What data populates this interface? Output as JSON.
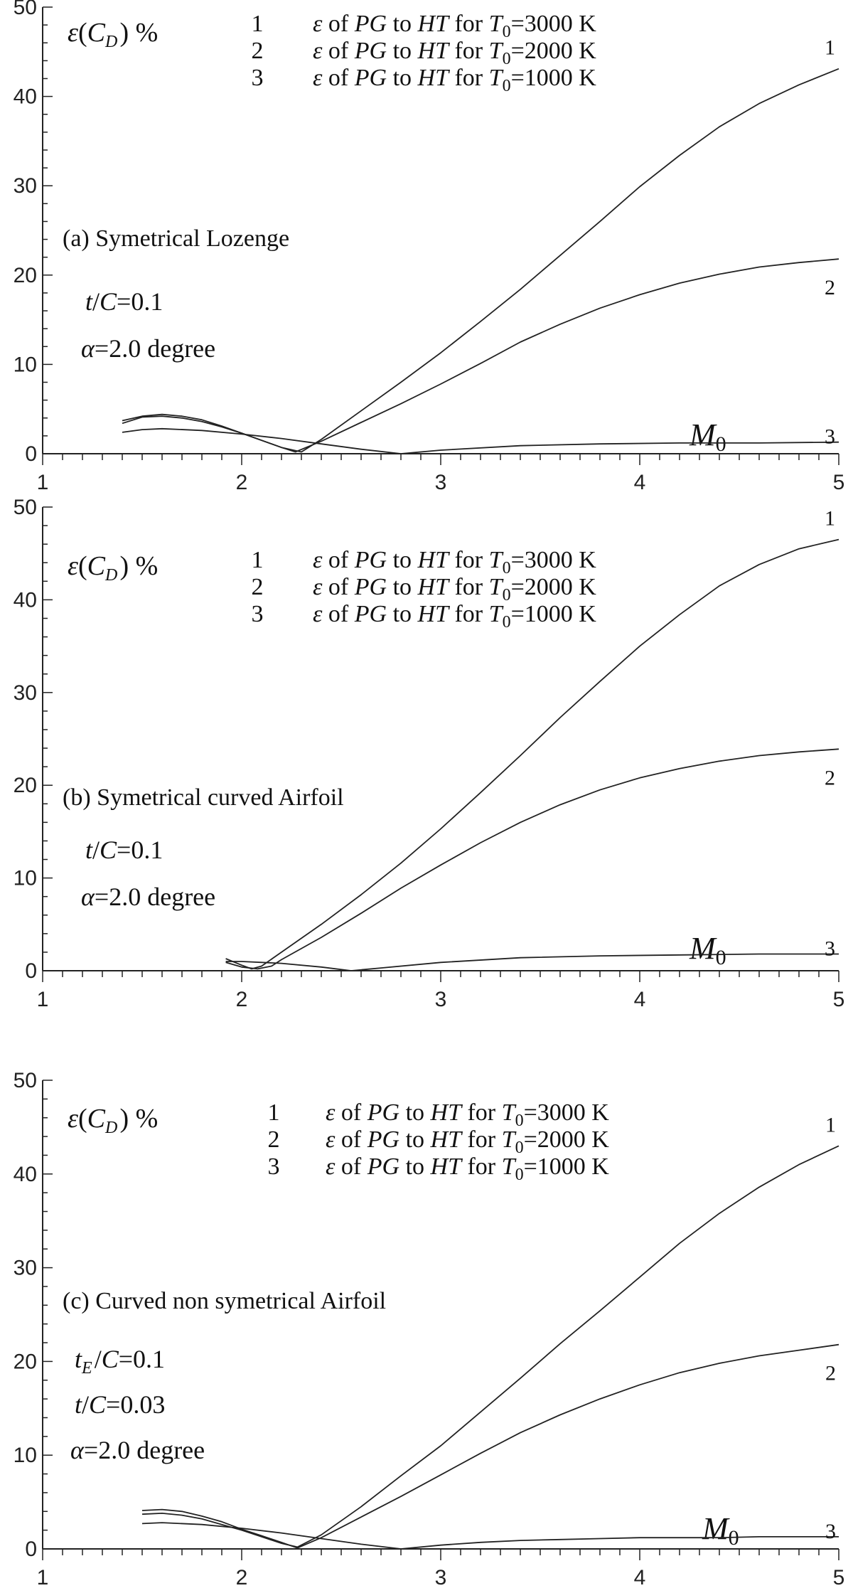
{
  "chart_data": [
    {
      "type": "line",
      "title": "Symetrical Lozenge",
      "panel_label": "(a)",
      "params": [
        {
          "lhs": "t/C",
          "rhs": "=0.1"
        },
        {
          "lhs": "α",
          "rhs": "=2.0 degree"
        }
      ],
      "ylabel": "ε(C_D)  %",
      "xlabel": "M_0",
      "xlim": [
        1,
        5
      ],
      "ylim": [
        0,
        50
      ],
      "xticks": [
        1,
        2,
        3,
        4,
        5
      ],
      "yticks": [
        0,
        10,
        20,
        30,
        40,
        50
      ],
      "grid": false,
      "legend_position": "top",
      "legend": [
        {
          "number": "1",
          "text": "ε of PG to HT for T0=3000 K"
        },
        {
          "number": "2",
          "text": "ε of PG to HT for T0=2000 K"
        },
        {
          "number": "3",
          "text": "ε of PG to HT for T0=1000 K"
        }
      ],
      "series": [
        {
          "name": "1",
          "x": [
            1.4,
            1.5,
            1.6,
            1.7,
            1.8,
            1.9,
            2.0,
            2.1,
            2.2,
            2.3,
            2.4,
            2.6,
            2.8,
            3.0,
            3.2,
            3.4,
            3.6,
            3.8,
            4.0,
            4.2,
            4.4,
            4.6,
            4.8,
            5.0
          ],
          "y": [
            3.4,
            4.1,
            4.2,
            4.0,
            3.6,
            3.0,
            2.3,
            1.5,
            0.7,
            0.2,
            1.6,
            4.8,
            8.0,
            11.3,
            14.8,
            18.4,
            22.2,
            26.0,
            29.9,
            33.4,
            36.6,
            39.2,
            41.3,
            43.1
          ]
        },
        {
          "name": "2",
          "x": [
            1.4,
            1.5,
            1.6,
            1.7,
            1.8,
            1.9,
            2.0,
            2.1,
            2.2,
            2.27,
            2.4,
            2.6,
            2.8,
            3.0,
            3.2,
            3.4,
            3.6,
            3.8,
            4.0,
            4.2,
            4.4,
            4.6,
            4.8,
            5.0
          ],
          "y": [
            3.7,
            4.2,
            4.4,
            4.2,
            3.8,
            3.1,
            2.3,
            1.5,
            0.7,
            0.2,
            1.4,
            3.5,
            5.6,
            7.8,
            10.1,
            12.5,
            14.5,
            16.3,
            17.8,
            19.1,
            20.1,
            20.9,
            21.4,
            21.8
          ]
        },
        {
          "name": "3",
          "x": [
            1.4,
            1.5,
            1.6,
            1.8,
            2.0,
            2.2,
            2.4,
            2.6,
            2.8,
            3.0,
            3.4,
            3.8,
            4.2,
            4.6,
            5.0
          ],
          "y": [
            2.4,
            2.7,
            2.8,
            2.6,
            2.2,
            1.7,
            1.1,
            0.5,
            0.0,
            0.4,
            0.9,
            1.1,
            1.2,
            1.2,
            1.3
          ]
        }
      ]
    },
    {
      "type": "line",
      "title": "Symetrical curved Airfoil",
      "panel_label": "(b)",
      "params": [
        {
          "lhs": "t/C",
          "rhs": "=0.1"
        },
        {
          "lhs": "α",
          "rhs": "=2.0 degree"
        }
      ],
      "ylabel": "ε(C_D)  %",
      "xlabel": "M_0",
      "xlim": [
        1,
        5
      ],
      "ylim": [
        0,
        50
      ],
      "xticks": [
        1,
        2,
        3,
        4,
        5
      ],
      "yticks": [
        0,
        10,
        20,
        30,
        40,
        50
      ],
      "grid": false,
      "legend_position": "top",
      "legend": [
        {
          "number": "1",
          "text": "ε of PG to HT for T0=3000 K"
        },
        {
          "number": "2",
          "text": "ε of PG to HT for T0=2000 K"
        },
        {
          "number": "3",
          "text": "ε of PG to HT for T0=1000 K"
        }
      ],
      "series": [
        {
          "name": "1",
          "x": [
            1.92,
            2.0,
            2.05,
            2.1,
            2.2,
            2.4,
            2.6,
            2.8,
            3.0,
            3.2,
            3.4,
            3.6,
            3.8,
            4.0,
            4.2,
            4.4,
            4.6,
            4.8,
            5.0
          ],
          "y": [
            1.3,
            0.6,
            0.2,
            0.5,
            2.0,
            5.0,
            8.2,
            11.6,
            15.3,
            19.2,
            23.2,
            27.3,
            31.2,
            35.0,
            38.4,
            41.5,
            43.8,
            45.5,
            46.5
          ]
        },
        {
          "name": "2",
          "x": [
            1.92,
            2.0,
            2.08,
            2.15,
            2.2,
            2.4,
            2.6,
            2.8,
            3.0,
            3.2,
            3.4,
            3.6,
            3.8,
            4.0,
            4.2,
            4.4,
            4.6,
            4.8,
            5.0
          ],
          "y": [
            0.9,
            0.4,
            0.2,
            0.5,
            1.2,
            3.6,
            6.2,
            8.9,
            11.4,
            13.8,
            16.0,
            17.9,
            19.5,
            20.8,
            21.8,
            22.6,
            23.2,
            23.6,
            23.9
          ]
        },
        {
          "name": "3",
          "x": [
            1.92,
            2.0,
            2.2,
            2.4,
            2.55,
            2.7,
            3.0,
            3.4,
            3.8,
            4.2,
            4.6,
            5.0
          ],
          "y": [
            1.0,
            1.0,
            0.8,
            0.4,
            0.0,
            0.3,
            0.9,
            1.4,
            1.6,
            1.7,
            1.8,
            1.8
          ]
        }
      ]
    },
    {
      "type": "line",
      "title": "Curved non symetrical Airfoil",
      "panel_label": "(c)",
      "params": [
        {
          "lhs": "t_E/C",
          "rhs": "=0.1"
        },
        {
          "lhs": "t/C",
          "rhs": "=0.03"
        },
        {
          "lhs": "α",
          "rhs": "=2.0 degree"
        }
      ],
      "ylabel": "ε(C_D)  %",
      "xlabel": "M_0",
      "xlim": [
        1,
        5
      ],
      "ylim": [
        0,
        50
      ],
      "xticks": [
        1,
        2,
        3,
        4,
        5
      ],
      "yticks": [
        0,
        10,
        20,
        30,
        40,
        50
      ],
      "grid": false,
      "legend_position": "top",
      "legend": [
        {
          "number": "1",
          "text": "ε of PG to HT for T0=3000 K"
        },
        {
          "number": "2",
          "text": "ε of PG to HT for T0=2000 K"
        },
        {
          "number": "3",
          "text": "ε of PG to HT for T0=1000 K"
        }
      ],
      "series": [
        {
          "name": "1",
          "x": [
            1.5,
            1.6,
            1.7,
            1.8,
            1.9,
            2.0,
            2.1,
            2.2,
            2.28,
            2.4,
            2.6,
            2.8,
            3.0,
            3.2,
            3.4,
            3.6,
            3.8,
            4.0,
            4.2,
            4.4,
            4.6,
            4.8,
            5.0
          ],
          "y": [
            3.7,
            3.8,
            3.6,
            3.2,
            2.6,
            2.0,
            1.3,
            0.6,
            0.2,
            1.5,
            4.5,
            7.8,
            11.0,
            14.6,
            18.2,
            21.9,
            25.4,
            29.0,
            32.6,
            35.8,
            38.6,
            41.0,
            43.0
          ]
        },
        {
          "name": "2",
          "x": [
            1.5,
            1.6,
            1.7,
            1.8,
            1.9,
            2.0,
            2.1,
            2.2,
            2.28,
            2.4,
            2.6,
            2.8,
            3.0,
            3.2,
            3.4,
            3.6,
            3.8,
            4.0,
            4.2,
            4.4,
            4.6,
            4.8,
            5.0
          ],
          "y": [
            4.1,
            4.2,
            4.0,
            3.5,
            2.9,
            2.1,
            1.4,
            0.7,
            0.1,
            1.2,
            3.4,
            5.6,
            7.9,
            10.2,
            12.4,
            14.3,
            16.0,
            17.5,
            18.8,
            19.8,
            20.6,
            21.2,
            21.8
          ]
        },
        {
          "name": "3",
          "x": [
            1.5,
            1.6,
            1.8,
            2.0,
            2.2,
            2.4,
            2.6,
            2.8,
            3.0,
            3.2,
            3.4,
            3.6,
            3.8,
            4.0,
            4.2,
            4.4,
            4.6,
            4.8,
            5.0
          ],
          "y": [
            2.7,
            2.8,
            2.6,
            2.2,
            1.7,
            1.1,
            0.5,
            0.0,
            0.4,
            0.7,
            0.9,
            1.0,
            1.1,
            1.2,
            1.2,
            1.2,
            1.3,
            1.3,
            1.3
          ]
        }
      ]
    }
  ]
}
